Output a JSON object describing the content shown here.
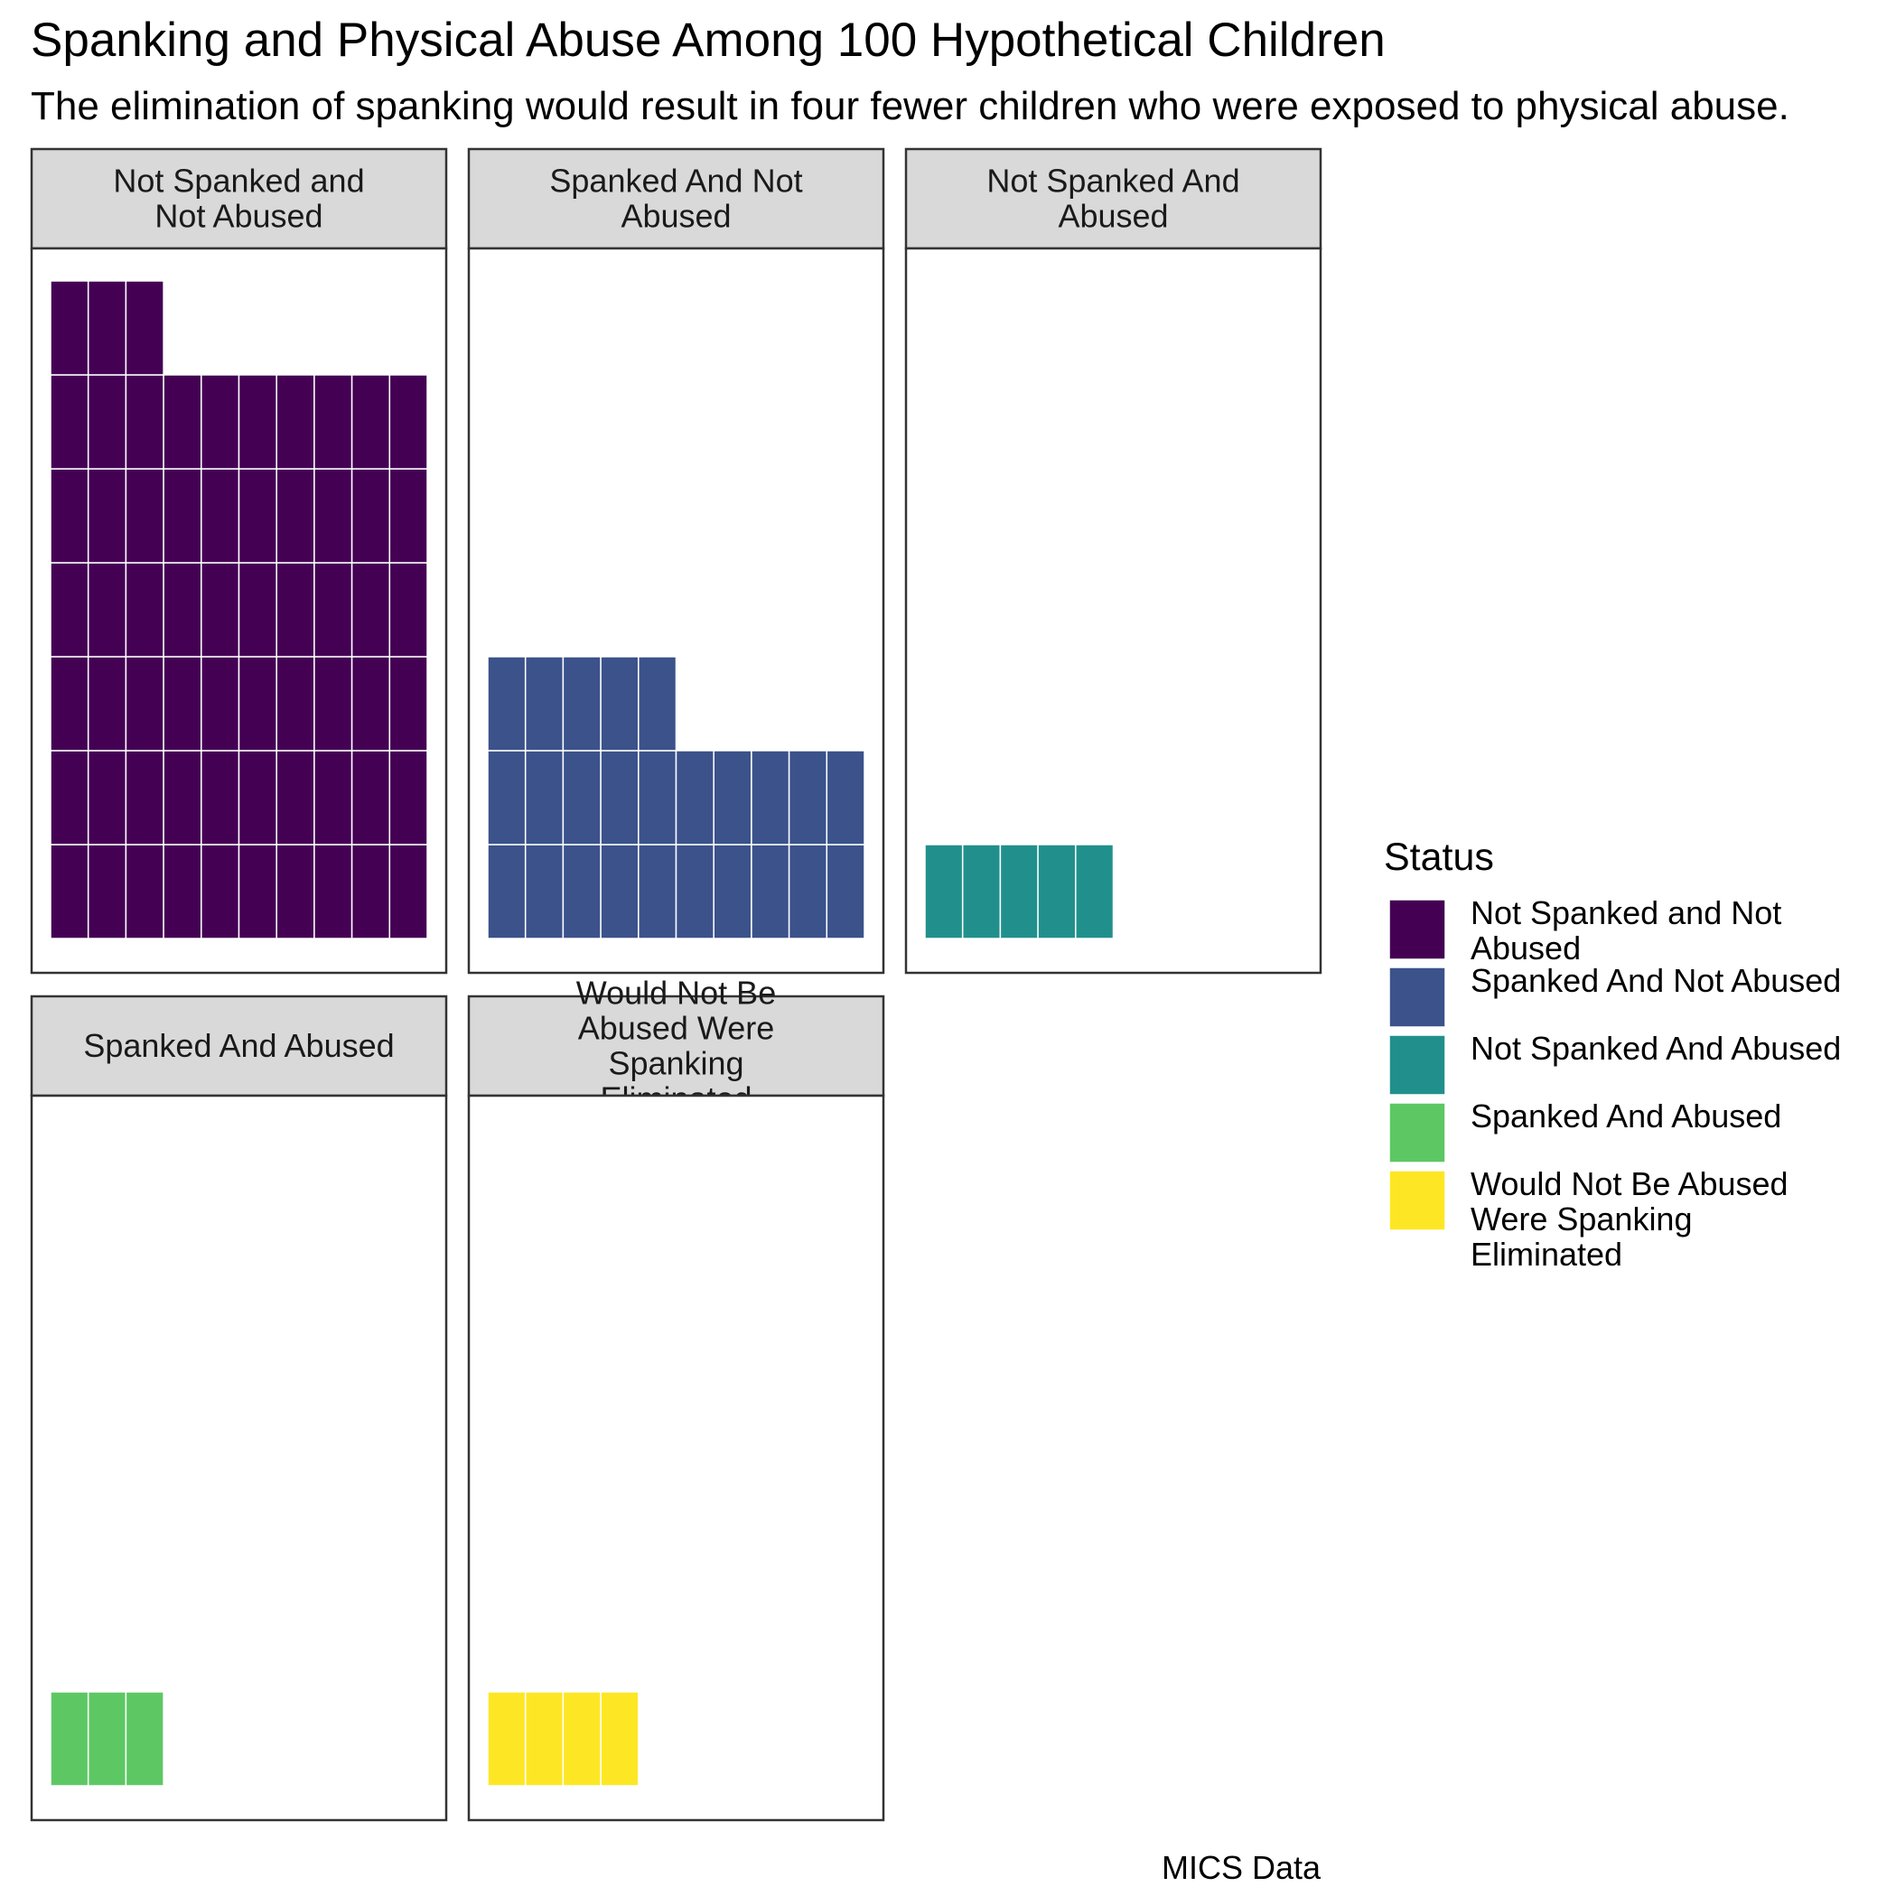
{
  "chart_data": {
    "type": "waffle",
    "title": "Spanking and Physical Abuse Among 100 Hypothetical Children",
    "subtitle": "The elimination of spanking would result in four fewer children who were exposed to physical abuse.",
    "caption": "MICS Data",
    "legend": {
      "title": "Status",
      "position": "right",
      "entries": [
        {
          "label": "Not Spanked and Not Abused",
          "color": "#440154"
        },
        {
          "label": "Spanked And Not Abused",
          "color": "#3B528B"
        },
        {
          "label": "Not Spanked And Abused",
          "color": "#21908C"
        },
        {
          "label": "Spanked And Abused",
          "color": "#5DC863"
        },
        {
          "label": "Would Not Be Abused Were Spanking Eliminated",
          "color": "#FDE725"
        }
      ]
    },
    "panels": [
      {
        "label": "Not Spanked and Not Abused",
        "count": 63,
        "color": "#440154"
      },
      {
        "label": "Spanked And Not Abused",
        "count": 25,
        "color": "#3B528B"
      },
      {
        "label": "Not Spanked And Abused",
        "count": 5,
        "color": "#21908C"
      },
      {
        "label": "Spanked And Abused",
        "count": 3,
        "color": "#5DC863"
      },
      {
        "label": "Would Not Be Abused Were Spanking Eliminated",
        "count": 4,
        "color": "#FDE725"
      }
    ],
    "units_per_row": 10,
    "grid": false
  }
}
